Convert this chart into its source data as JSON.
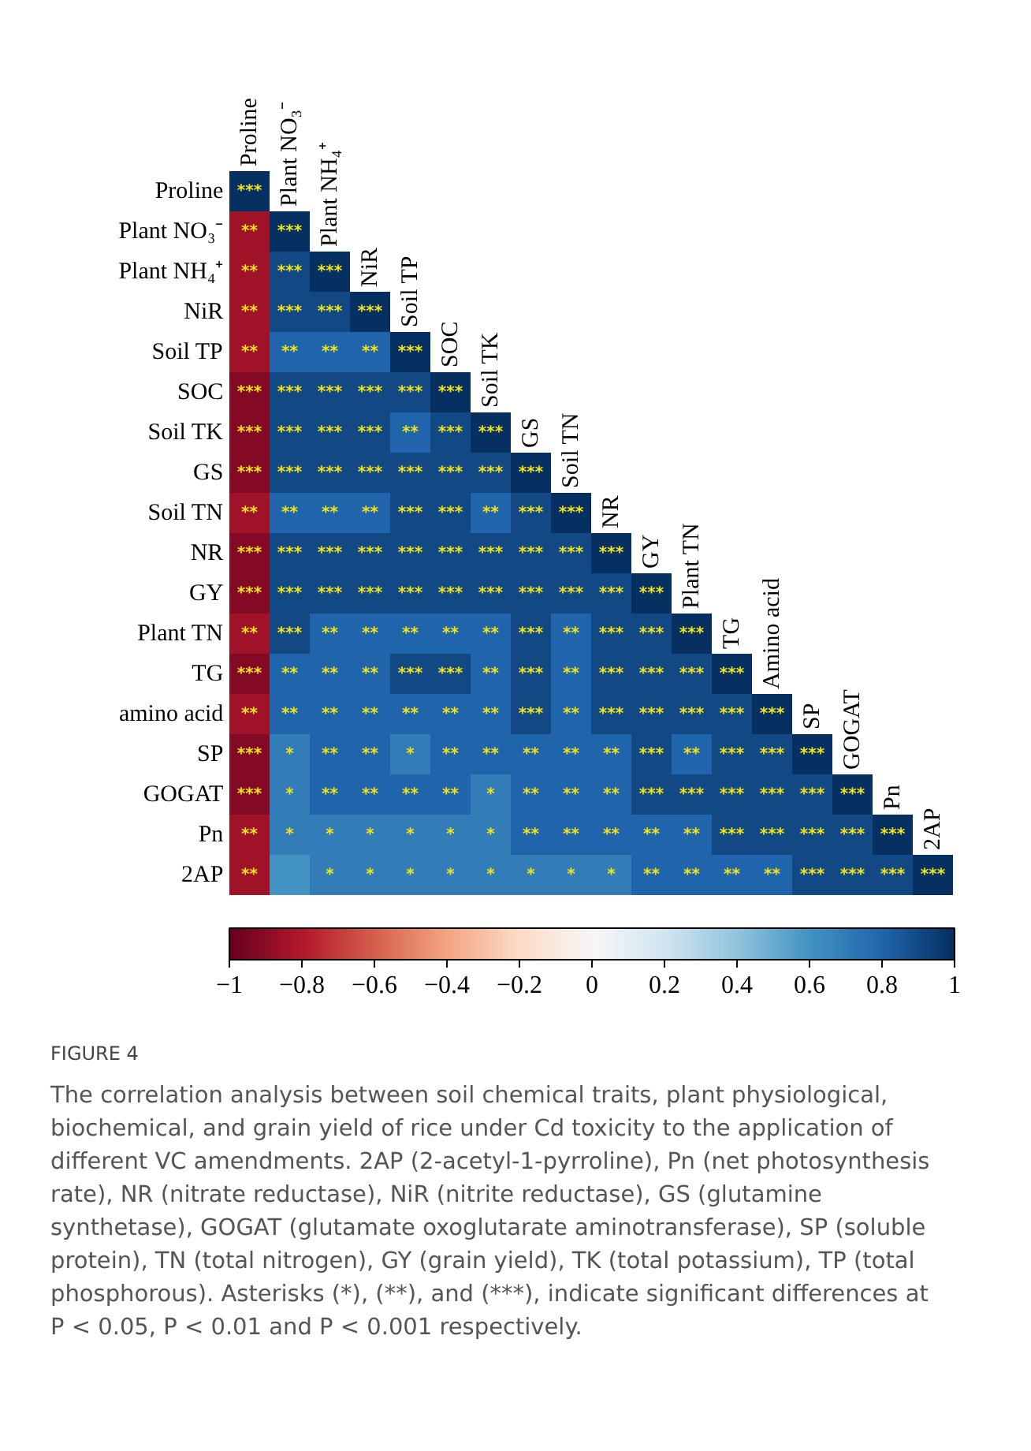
{
  "chart_data": {
    "type": "heatmap",
    "title": "FIGURE 4",
    "annotations": [
      "The correlation analysis between soil chemical traits, plant physiological, biochemical, and grain yield of rice under Cd toxicity to the application of different VC amendments. 2AP (2-acetyl-1-pyrroline), Pn (net photosynthesis rate), NR (nitrate reductase), NiR (nitrite reductase), GS (glutamine synthetase), GOGAT (glutamate oxoglutarate aminotransferase), SP (soluble protein), TN (total nitrogen), GY (grain yield), TK (total potassium), TP (total phosphorous). Asterisks (*), (**), and (***), indicate significant differences at P < 0.05, P < 0.01 and P < 0.001 respectively."
    ],
    "categories": [
      "Proline",
      "Plant NO₃⁻",
      "Plant NH₄⁺",
      "NiR",
      "Soil TP",
      "SOC",
      "Soil TK",
      "GS",
      "Soil TN",
      "NR",
      "GY",
      "Plant TN",
      "TG",
      "Amino acid",
      "SP",
      "GOGAT",
      "Pn",
      "2AP"
    ],
    "y_categories": [
      "Proline",
      "Plant NO₃⁻",
      "Plant NH₄⁺",
      "NiR",
      "Soil TP",
      "SOC",
      "Soil TK",
      "GS",
      "Soil TN",
      "NR",
      "GY",
      "Plant TN",
      "TG",
      "amino acid",
      "SP",
      "GOGAT",
      "Pn",
      "2AP"
    ],
    "cells": [
      [
        1,
        null,
        null,
        null,
        null,
        null,
        null,
        null,
        null,
        null,
        null,
        null,
        null,
        null,
        null,
        null,
        null,
        null
      ],
      [
        -0.85,
        1,
        null,
        null,
        null,
        null,
        null,
        null,
        null,
        null,
        null,
        null,
        null,
        null,
        null,
        null,
        null,
        null
      ],
      [
        -0.85,
        0.9,
        1,
        null,
        null,
        null,
        null,
        null,
        null,
        null,
        null,
        null,
        null,
        null,
        null,
        null,
        null,
        null
      ],
      [
        -0.85,
        0.9,
        0.9,
        1,
        null,
        null,
        null,
        null,
        null,
        null,
        null,
        null,
        null,
        null,
        null,
        null,
        null,
        null
      ],
      [
        -0.85,
        0.8,
        0.8,
        0.8,
        1,
        null,
        null,
        null,
        null,
        null,
        null,
        null,
        null,
        null,
        null,
        null,
        null,
        null
      ],
      [
        -0.92,
        0.9,
        0.9,
        0.9,
        0.9,
        1,
        null,
        null,
        null,
        null,
        null,
        null,
        null,
        null,
        null,
        null,
        null,
        null
      ],
      [
        -0.92,
        0.9,
        0.9,
        0.9,
        0.8,
        0.9,
        1,
        null,
        null,
        null,
        null,
        null,
        null,
        null,
        null,
        null,
        null,
        null
      ],
      [
        -0.92,
        0.9,
        0.9,
        0.9,
        0.9,
        0.9,
        0.9,
        1,
        null,
        null,
        null,
        null,
        null,
        null,
        null,
        null,
        null,
        null
      ],
      [
        -0.85,
        0.8,
        0.8,
        0.8,
        0.9,
        0.9,
        0.8,
        0.9,
        1,
        null,
        null,
        null,
        null,
        null,
        null,
        null,
        null,
        null
      ],
      [
        -0.92,
        0.9,
        0.9,
        0.9,
        0.9,
        0.9,
        0.9,
        0.9,
        0.9,
        1,
        null,
        null,
        null,
        null,
        null,
        null,
        null,
        null
      ],
      [
        -0.92,
        0.9,
        0.9,
        0.9,
        0.9,
        0.9,
        0.9,
        0.9,
        0.9,
        0.9,
        1,
        null,
        null,
        null,
        null,
        null,
        null,
        null
      ],
      [
        -0.85,
        0.9,
        0.8,
        0.8,
        0.8,
        0.8,
        0.8,
        0.9,
        0.8,
        0.9,
        0.9,
        1,
        null,
        null,
        null,
        null,
        null,
        null
      ],
      [
        -0.92,
        0.8,
        0.8,
        0.8,
        0.9,
        0.9,
        0.8,
        0.9,
        0.8,
        0.9,
        0.9,
        0.9,
        1,
        null,
        null,
        null,
        null,
        null
      ],
      [
        -0.85,
        0.8,
        0.8,
        0.8,
        0.8,
        0.8,
        0.8,
        0.9,
        0.8,
        0.9,
        0.9,
        0.9,
        0.9,
        1,
        null,
        null,
        null,
        null
      ],
      [
        -0.92,
        0.7,
        0.8,
        0.8,
        0.7,
        0.8,
        0.8,
        0.8,
        0.8,
        0.8,
        0.9,
        0.8,
        0.9,
        0.9,
        1,
        null,
        null,
        null
      ],
      [
        -0.92,
        0.7,
        0.8,
        0.8,
        0.8,
        0.8,
        0.7,
        0.8,
        0.8,
        0.8,
        0.9,
        0.9,
        0.9,
        0.9,
        0.9,
        1,
        null,
        null
      ],
      [
        -0.85,
        0.7,
        0.7,
        0.7,
        0.7,
        0.7,
        0.7,
        0.8,
        0.8,
        0.8,
        0.8,
        0.8,
        0.9,
        0.9,
        0.9,
        0.9,
        1,
        null
      ],
      [
        -0.85,
        0.6,
        0.7,
        0.7,
        0.7,
        0.7,
        0.7,
        0.7,
        0.7,
        0.7,
        0.8,
        0.8,
        0.8,
        0.8,
        0.9,
        0.9,
        0.9,
        1
      ]
    ],
    "cell_labels": [
      [
        "***",
        null,
        null,
        null,
        null,
        null,
        null,
        null,
        null,
        null,
        null,
        null,
        null,
        null,
        null,
        null,
        null,
        null
      ],
      [
        "**",
        "***",
        null,
        null,
        null,
        null,
        null,
        null,
        null,
        null,
        null,
        null,
        null,
        null,
        null,
        null,
        null,
        null
      ],
      [
        "**",
        "***",
        "***",
        null,
        null,
        null,
        null,
        null,
        null,
        null,
        null,
        null,
        null,
        null,
        null,
        null,
        null,
        null
      ],
      [
        "**",
        "***",
        "***",
        "***",
        null,
        null,
        null,
        null,
        null,
        null,
        null,
        null,
        null,
        null,
        null,
        null,
        null,
        null
      ],
      [
        "**",
        "**",
        "**",
        "**",
        "***",
        null,
        null,
        null,
        null,
        null,
        null,
        null,
        null,
        null,
        null,
        null,
        null,
        null
      ],
      [
        "***",
        "***",
        "***",
        "***",
        "***",
        "***",
        null,
        null,
        null,
        null,
        null,
        null,
        null,
        null,
        null,
        null,
        null,
        null
      ],
      [
        "***",
        "***",
        "***",
        "***",
        "**",
        "***",
        "***",
        null,
        null,
        null,
        null,
        null,
        null,
        null,
        null,
        null,
        null,
        null
      ],
      [
        "***",
        "***",
        "***",
        "***",
        "***",
        "***",
        "***",
        "***",
        null,
        null,
        null,
        null,
        null,
        null,
        null,
        null,
        null,
        null
      ],
      [
        "**",
        "**",
        "**",
        "**",
        "***",
        "***",
        "**",
        "***",
        "***",
        null,
        null,
        null,
        null,
        null,
        null,
        null,
        null,
        null
      ],
      [
        "***",
        "***",
        "***",
        "***",
        "***",
        "***",
        "***",
        "***",
        "***",
        "***",
        null,
        null,
        null,
        null,
        null,
        null,
        null,
        null
      ],
      [
        "***",
        "***",
        "***",
        "***",
        "***",
        "***",
        "***",
        "***",
        "***",
        "***",
        "***",
        null,
        null,
        null,
        null,
        null,
        null,
        null
      ],
      [
        "**",
        "***",
        "**",
        "**",
        "**",
        "**",
        "**",
        "***",
        "**",
        "***",
        "***",
        "***",
        null,
        null,
        null,
        null,
        null,
        null
      ],
      [
        "***",
        "**",
        "**",
        "**",
        "***",
        "***",
        "**",
        "***",
        "**",
        "***",
        "***",
        "***",
        "***",
        null,
        null,
        null,
        null,
        null
      ],
      [
        "**",
        "**",
        "**",
        "**",
        "**",
        "**",
        "**",
        "***",
        "**",
        "***",
        "***",
        "***",
        "***",
        "***",
        null,
        null,
        null,
        null
      ],
      [
        "***",
        "*",
        "**",
        "**",
        "*",
        "**",
        "**",
        "**",
        "**",
        "**",
        "***",
        "**",
        "***",
        "***",
        "***",
        null,
        null,
        null
      ],
      [
        "***",
        "*",
        "**",
        "**",
        "**",
        "**",
        "*",
        "**",
        "**",
        "**",
        "***",
        "***",
        "***",
        "***",
        "***",
        "***",
        null,
        null
      ],
      [
        "**",
        "*",
        "*",
        "*",
        "*",
        "*",
        "*",
        "**",
        "**",
        "**",
        "**",
        "**",
        "***",
        "***",
        "***",
        "***",
        "***",
        null
      ],
      [
        "**",
        null,
        "*",
        "*",
        "*",
        "*",
        "*",
        "*",
        "*",
        "*",
        "**",
        "**",
        "**",
        "**",
        "***",
        "***",
        "***",
        "***"
      ]
    ],
    "clim": [
      -1,
      1
    ],
    "cticks": [
      -1,
      -0.8,
      -0.6,
      -0.4,
      -0.2,
      0,
      0.2,
      0.4,
      0.6,
      0.8,
      1
    ]
  }
}
